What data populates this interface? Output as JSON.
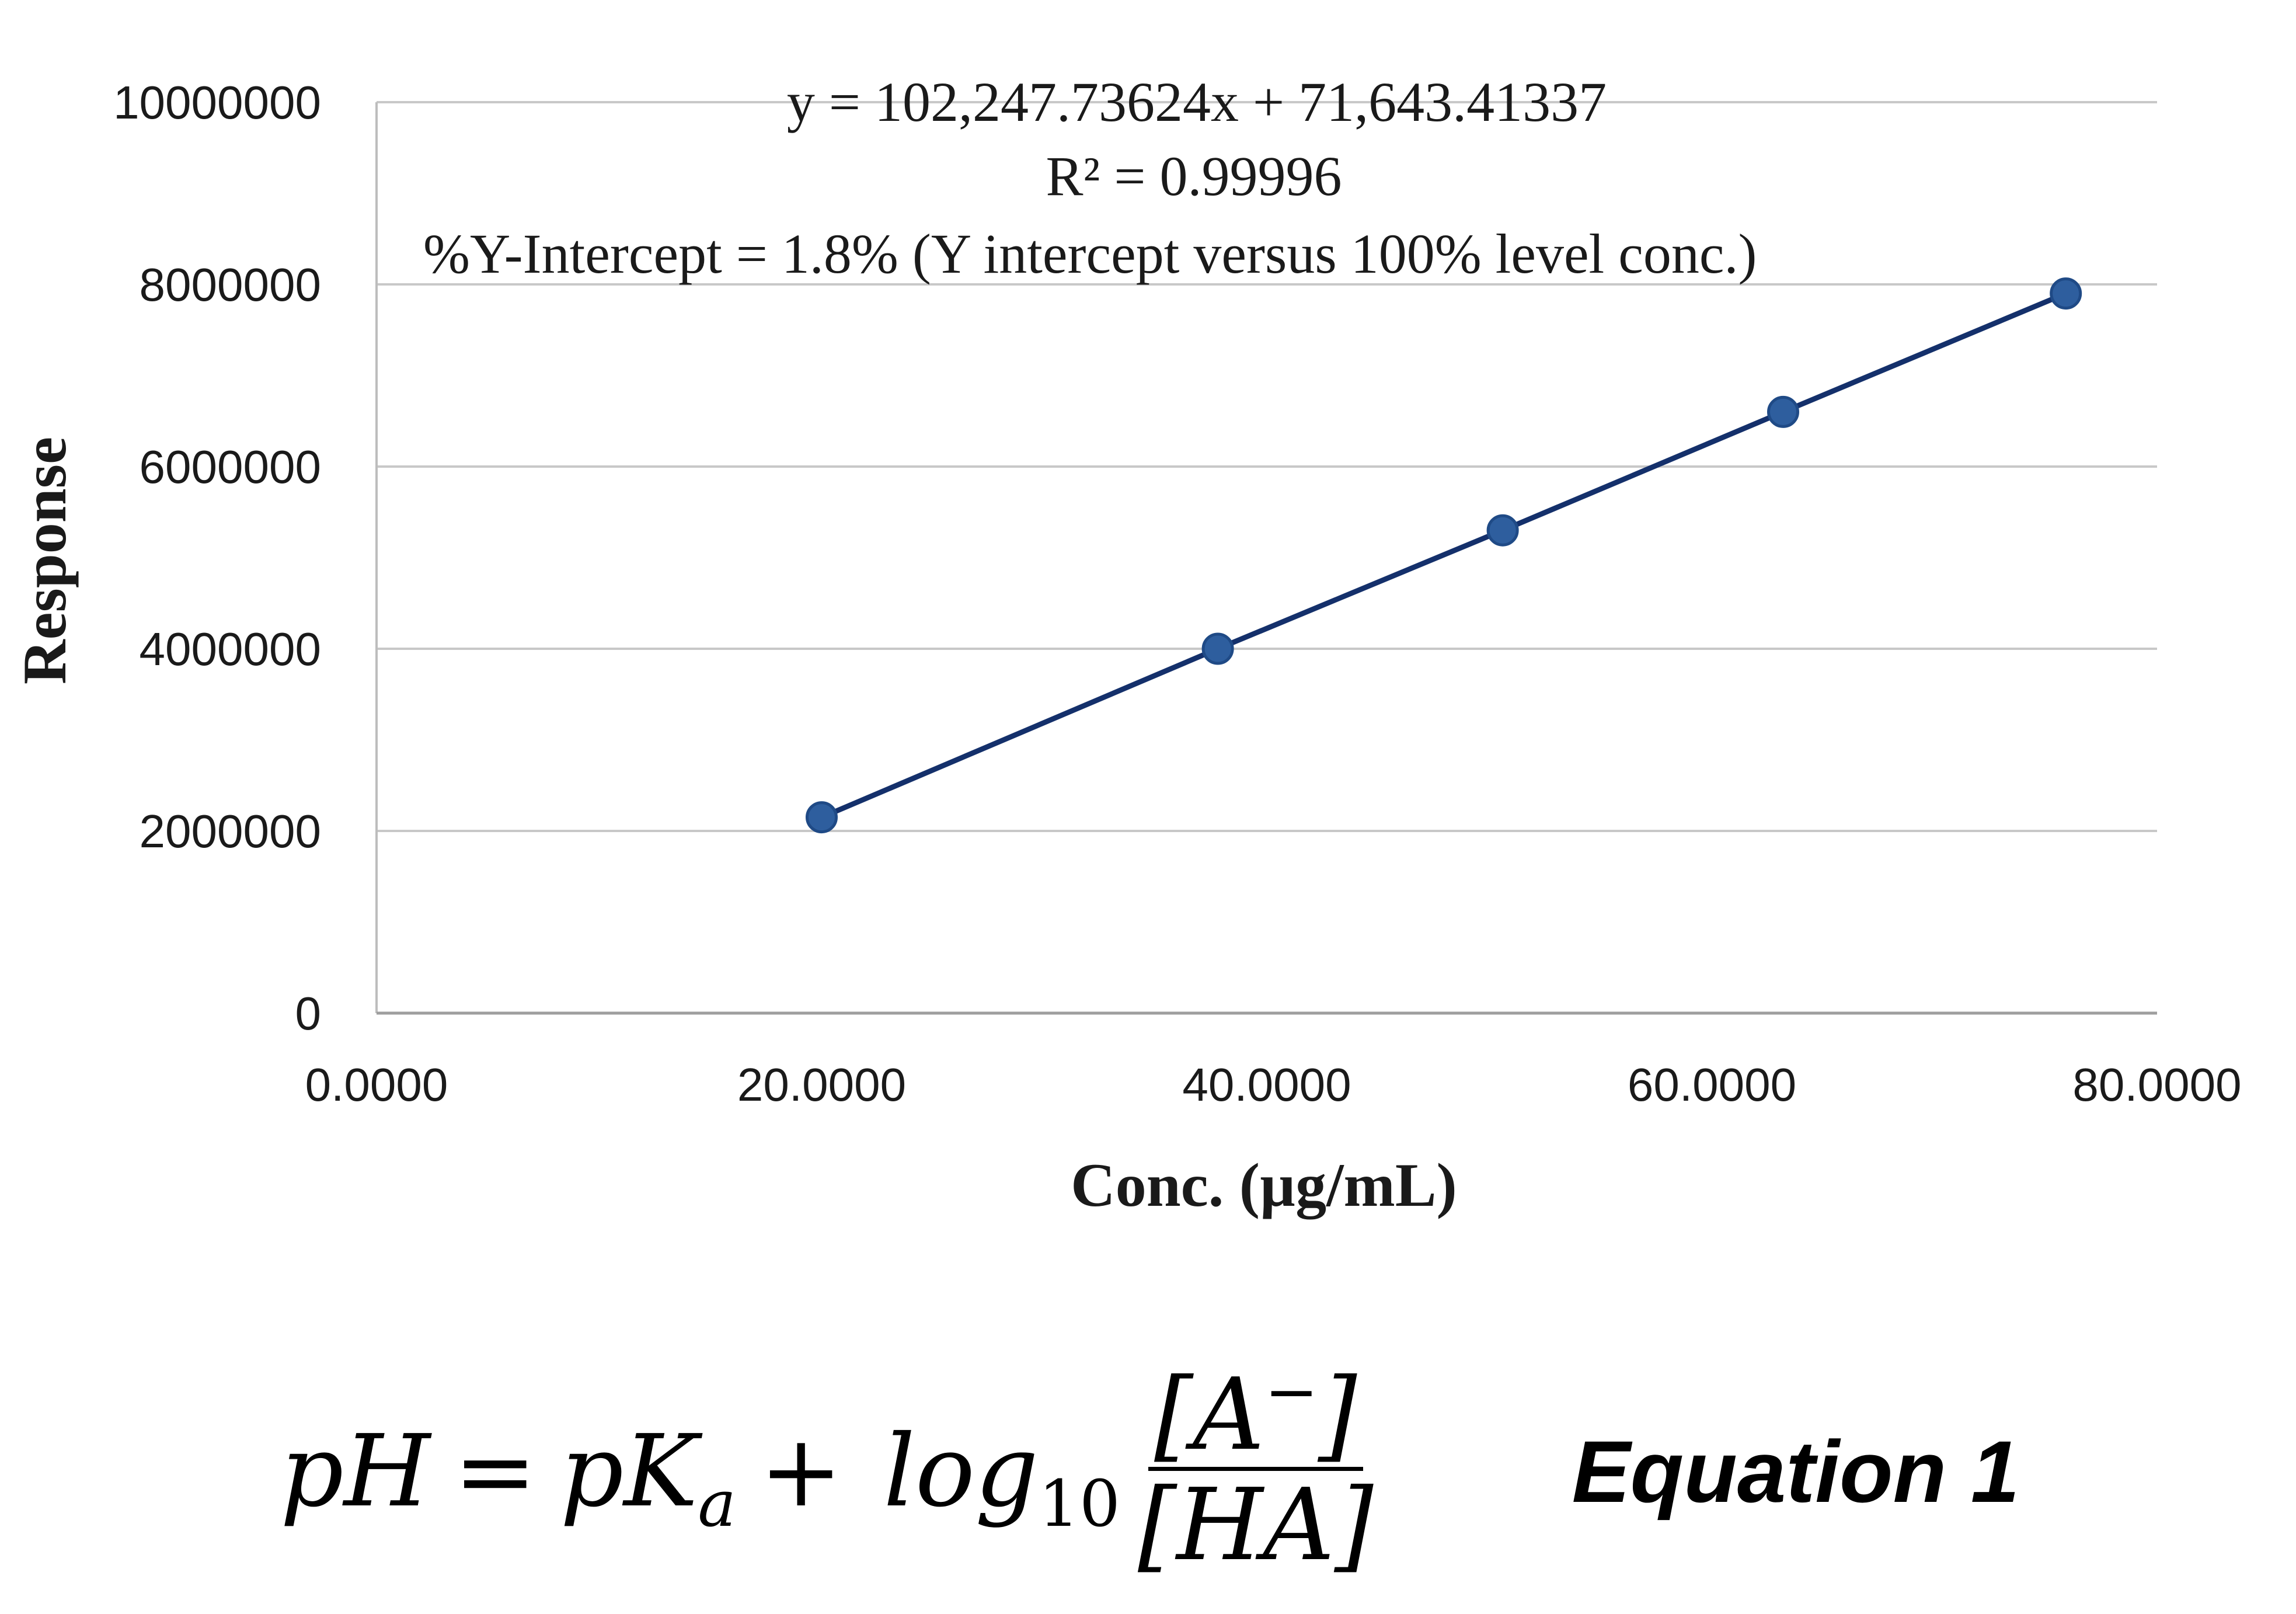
{
  "chart_data": {
    "type": "scatter",
    "title": "",
    "xlabel": "Conc. (µg/mL)",
    "ylabel": "Response",
    "xlim": [
      0,
      80
    ],
    "ylim": [
      0,
      10000000
    ],
    "x_ticks": [
      "0.0000",
      "20.0000",
      "40.0000",
      "60.0000",
      "80.0000"
    ],
    "y_ticks": [
      "0",
      "2000000",
      "4000000",
      "6000000",
      "8000000",
      "10000000"
    ],
    "x_tick_values": [
      0,
      20,
      40,
      60,
      80
    ],
    "y_tick_values": [
      0,
      2000000,
      4000000,
      6000000,
      8000000,
      10000000
    ],
    "grid": true,
    "series": [
      {
        "x": [
          20.0,
          37.8,
          50.6,
          63.2,
          75.9
        ],
        "y": [
          2150000,
          4000000,
          5300000,
          6600000,
          7900000
        ],
        "color": "#2e5e9e",
        "line_color": "#14306b",
        "trendline": true
      }
    ],
    "annotations": [
      "y = 102,247.73624x + 71,643.41337",
      "R² = 0.99996",
      "%Y-Intercept = 1.8% (Y intercept versus 100% level conc.)"
    ]
  },
  "equation": {
    "lhs": "pH",
    "equals": "=",
    "pka_base": "pK",
    "pka_sub": "a",
    "plus": "+",
    "log_base": "log",
    "log_sub": "10",
    "numerator_open": "[A",
    "numerator_sup": "−",
    "numerator_close": "]",
    "denominator": "[HA]",
    "label": "Equation 1"
  }
}
